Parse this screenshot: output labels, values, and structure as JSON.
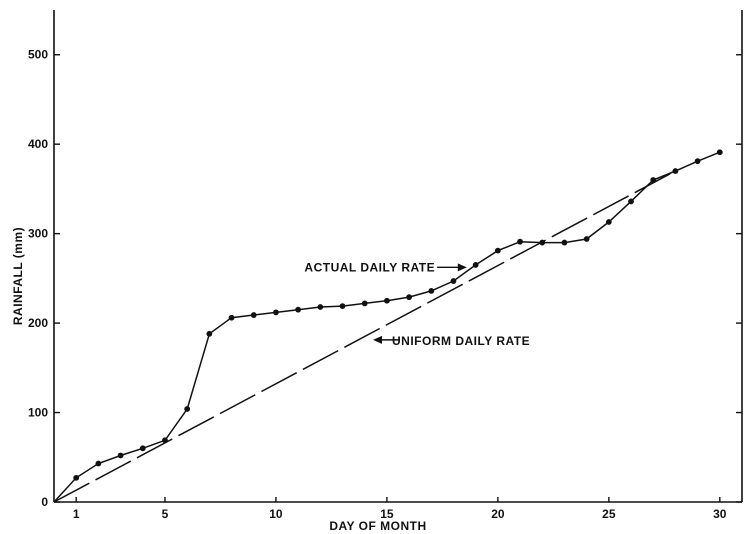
{
  "chart_data": {
    "type": "line",
    "title": "",
    "xlabel": "DAY OF MONTH",
    "ylabel": "RAINFALL (mm)",
    "xlim": [
      0,
      31
    ],
    "ylim": [
      0,
      550
    ],
    "x_ticks": [
      1,
      5,
      10,
      15,
      20,
      25,
      30
    ],
    "y_ticks": [
      0,
      100,
      200,
      300,
      400,
      500
    ],
    "x_tick_labels": [
      "1",
      "5",
      "10",
      "15",
      "20",
      "25",
      "30"
    ],
    "y_tick_labels": [
      "0",
      "100",
      "200",
      "300",
      "400",
      "500"
    ],
    "grid": false,
    "series": [
      {
        "name": "ACTUAL DAILY RATE",
        "style": "solid-with-markers",
        "x": [
          0,
          1,
          2,
          3,
          4,
          5,
          6,
          7,
          8,
          9,
          10,
          11,
          12,
          13,
          14,
          15,
          16,
          17,
          18,
          19,
          20,
          21,
          22,
          23,
          24,
          25,
          26,
          27,
          28,
          29,
          30
        ],
        "y": [
          0,
          27,
          43,
          52,
          60,
          69,
          104,
          188,
          206,
          209,
          212,
          215,
          218,
          219,
          222,
          225,
          229,
          236,
          247,
          265,
          281,
          291,
          290,
          290,
          294,
          313,
          336,
          360,
          370,
          381,
          391
        ]
      },
      {
        "name": "UNIFORM DAILY RATE",
        "style": "dashed",
        "x": [
          0,
          28
        ],
        "y": [
          0,
          370
        ]
      }
    ],
    "annotations": [
      {
        "text": "ACTUAL DAILY RATE",
        "points_to": {
          "x": 18.6,
          "y": 259
        },
        "label_at": {
          "x": 12.5,
          "y": 259
        }
      },
      {
        "text": "UNIFORM DAILY RATE",
        "points_to": {
          "x": 14.6,
          "y": 179
        },
        "label_at": {
          "x": 17.0,
          "y": 179
        }
      }
    ]
  }
}
